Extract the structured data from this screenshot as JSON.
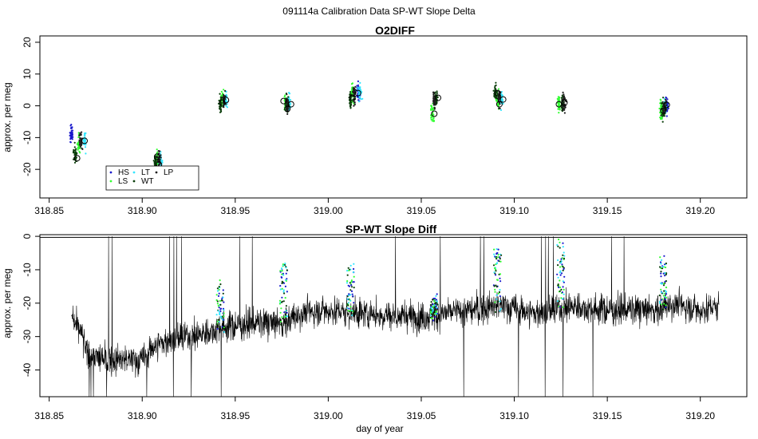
{
  "figure_title": "091114a   Calibration Data SP-WT Slope Delta",
  "colors": {
    "HS": "#1a1acc",
    "LS": "#33ff33",
    "LT": "#33e6ff",
    "WT": "#0a3d0a",
    "LP": "#1f1f1f",
    "trace": "#000000",
    "frame": "#000000"
  },
  "chart_data": [
    {
      "type": "scatter",
      "title": "O2DIFF",
      "xlabel": "",
      "ylabel": "approx. per meg",
      "xlim": [
        318.845,
        319.225
      ],
      "ylim": [
        -29,
        22
      ],
      "xticks": [
        318.85,
        318.9,
        318.95,
        319.0,
        319.05,
        319.1,
        319.15,
        319.2
      ],
      "xtick_labels": [
        "318.85",
        "318.90",
        "318.95",
        "319.00",
        "319.05",
        "319.10",
        "319.15",
        "319.20"
      ],
      "yticks": [
        -20,
        -10,
        0,
        10,
        20
      ],
      "ytick_labels": [
        "-20",
        "-10",
        "0",
        "10",
        "20"
      ],
      "grid": false,
      "legend": {
        "placement": "bottom-left",
        "entries": [
          "HS",
          "LS",
          "LT",
          "WT",
          "LP"
        ]
      },
      "series": [
        {
          "name": "HS",
          "x": [
            318.862,
            319.016,
            319.182
          ],
          "y": [
            -9,
            4.5,
            0
          ]
        },
        {
          "name": "LS",
          "x": [
            318.866,
            318.908,
            318.943,
            318.977,
            319.013,
            319.056,
            319.091,
            319.124,
            319.179
          ],
          "y": [
            -12,
            -17,
            2,
            1,
            4,
            -2,
            2,
            0.5,
            -1
          ]
        },
        {
          "name": "LT",
          "x": [
            318.869,
            318.91,
            318.945,
            318.979,
            319.017,
            319.093,
            319.181
          ],
          "y": [
            -11,
            -17.5,
            2,
            0.5,
            4,
            2.5,
            -0.5
          ]
        },
        {
          "name": "WT",
          "x": [
            318.864,
            318.907,
            318.942,
            318.978,
            319.012,
            319.058,
            319.09,
            319.126,
            319.18
          ],
          "y": [
            -15.5,
            -18,
            0.5,
            0.5,
            2,
            2.5,
            4,
            0.5,
            -1.5
          ]
        },
        {
          "name": "LP",
          "x": [
            318.867,
            318.909,
            318.944,
            318.978,
            319.014,
            319.057,
            319.092,
            319.127,
            319.181
          ],
          "y": [
            -11,
            -17,
            2,
            0,
            3.5,
            2,
            2.5,
            1,
            -0.5
          ]
        }
      ],
      "period_means": {
        "x": [
          318.865,
          318.869,
          318.909,
          318.908,
          318.943,
          318.945,
          318.976,
          318.978,
          318.98,
          319.013,
          319.016,
          319.057,
          319.059,
          319.091,
          319.092,
          319.094,
          319.124,
          319.127,
          319.18,
          319.182
        ],
        "y": [
          -16.5,
          -11,
          -18.5,
          -16,
          1,
          1.8,
          1.5,
          -1,
          0.5,
          2.5,
          4,
          -2.5,
          2.5,
          4,
          0.5,
          2,
          0.5,
          1,
          -1.5,
          0.3
        ]
      }
    },
    {
      "type": "line",
      "title": "SP-WT Slope Diff",
      "xlabel": "day of year",
      "ylabel": "approx. per meg",
      "xlim": [
        318.845,
        319.225
      ],
      "ylim": [
        -48,
        0.5
      ],
      "xticks": [
        318.85,
        318.9,
        318.95,
        319.0,
        319.05,
        319.1,
        319.15,
        319.2
      ],
      "xtick_labels": [
        "318.85",
        "318.90",
        "318.95",
        "319.00",
        "319.05",
        "319.10",
        "319.15",
        "319.20"
      ],
      "yticks": [
        -40,
        -30,
        -20,
        -10,
        0
      ],
      "ytick_labels": [
        "-40",
        "-30",
        "-20",
        "-10",
        "0"
      ],
      "reference_line_y": -0.3,
      "trace_start": 318.862,
      "trace_end": 319.21,
      "baseline_breakpoints": {
        "x": [
          318.862,
          318.868,
          318.87,
          318.88,
          318.9,
          318.906,
          318.915,
          318.935,
          318.942,
          318.946,
          318.96,
          318.976,
          318.985,
          319.0,
          319.011,
          319.018,
          319.04,
          319.055,
          319.06,
          319.08,
          319.089,
          319.096,
          319.11,
          319.123,
          319.13,
          319.15,
          319.178,
          319.184,
          319.2,
          319.21
        ],
        "y": [
          -25,
          -30,
          -35,
          -37,
          -37,
          -33,
          -31,
          -29,
          -27,
          -27,
          -26,
          -26,
          -23,
          -22,
          -23,
          -23,
          -24,
          -24,
          -23,
          -22,
          -21,
          -21,
          -23,
          -22,
          -21,
          -22,
          -22,
          -20,
          -22,
          -21
        ]
      },
      "calibration_spikes": {
        "x": [
          318.942,
          318.976,
          319.012,
          319.057,
          319.091,
          319.125,
          319.18
        ],
        "y": [
          -14,
          -7,
          -9,
          -19,
          -3,
          -2,
          -7
        ]
      }
    }
  ]
}
